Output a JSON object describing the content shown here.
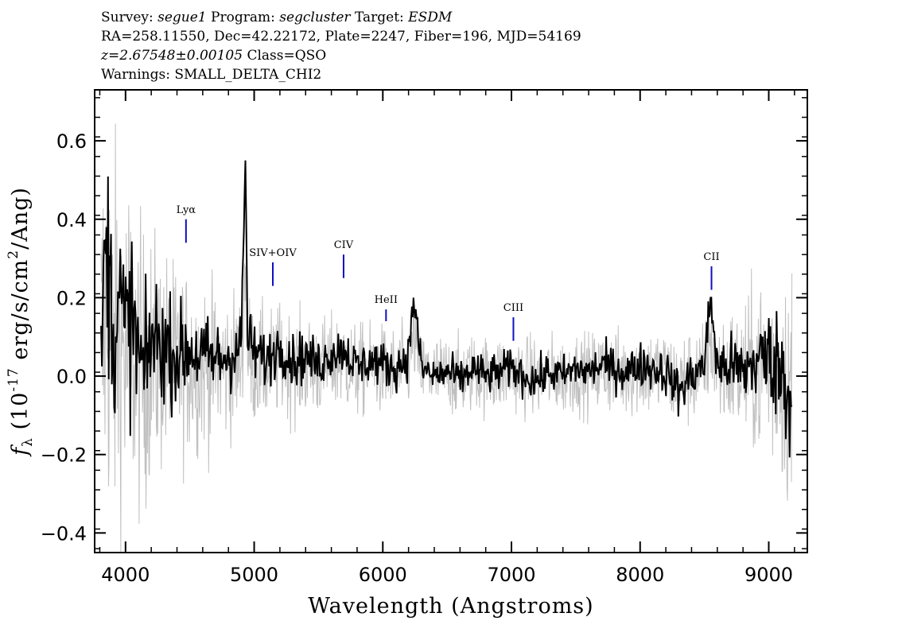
{
  "header": {
    "line1": {
      "survey_label": "Survey:",
      "survey": "segue1",
      "program_label": "Program:",
      "program": "segcluster",
      "target_label": "Target:",
      "target": "ESDM"
    },
    "line2": "RA=258.11550, Dec=42.22172, Plate=2247, Fiber=196, MJD=54169",
    "line3": {
      "redshift": "z=2.67548±0.00105",
      "class": "Class=QSO"
    },
    "line4": "Warnings: SMALL_DELTA_CHI2"
  },
  "chart_data": {
    "type": "line",
    "xlabel": "Wavelength (Angstroms)",
    "ylabel": "f_λ (10^-17 erg/s/cm^2/Ang)",
    "ylabel_parts": {
      "f": "f",
      "sub": "λ",
      "pre": "(10",
      "exp1": "-17",
      "mid": " erg/s/cm",
      "exp2": "2",
      "post": "/Ang)"
    },
    "xlim": [
      3760,
      9300
    ],
    "ylim": [
      -0.45,
      0.73
    ],
    "xticks": [
      {
        "value": 4000,
        "label": "4000"
      },
      {
        "value": 5000,
        "label": "5000"
      },
      {
        "value": 6000,
        "label": "6000"
      },
      {
        "value": 7000,
        "label": "7000"
      },
      {
        "value": 8000,
        "label": "8000"
      },
      {
        "value": 9000,
        "label": "9000"
      }
    ],
    "yticks": [
      {
        "value": -0.4,
        "label": "−0.4"
      },
      {
        "value": -0.2,
        "label": "−0.2"
      },
      {
        "value": 0.0,
        "label": "0.0"
      },
      {
        "value": 0.2,
        "label": "0.2"
      },
      {
        "value": 0.4,
        "label": "0.4"
      },
      {
        "value": 0.6,
        "label": "0.6"
      }
    ],
    "series": [
      {
        "role": "flux",
        "color": "#000000",
        "x": [
          3810,
          3850,
          3900,
          3950,
          4000,
          4050,
          4100,
          4150,
          4200,
          4300,
          4400,
          4500,
          4600,
          4700,
          4800,
          4900,
          4930,
          4950,
          5000,
          5100,
          5200,
          5300,
          5400,
          5500,
          5600,
          5700,
          5800,
          5900,
          6000,
          6100,
          6200,
          6240,
          6300,
          6400,
          6500,
          6600,
          6700,
          6800,
          6900,
          7000,
          7100,
          7200,
          7300,
          7400,
          7500,
          7600,
          7700,
          7800,
          7900,
          8000,
          8100,
          8200,
          8300,
          8400,
          8500,
          8550,
          8600,
          8700,
          8800,
          8900,
          9000,
          9100,
          9180
        ],
        "values": [
          0.05,
          0.38,
          0.12,
          0.2,
          0.1,
          0.15,
          0.05,
          0.0,
          0.1,
          0.08,
          0.05,
          0.07,
          0.05,
          0.04,
          0.05,
          0.08,
          0.55,
          0.1,
          0.06,
          0.04,
          0.08,
          0.04,
          0.05,
          0.03,
          0.06,
          0.07,
          0.02,
          0.04,
          0.03,
          0.02,
          0.05,
          0.2,
          0.02,
          0.0,
          0.01,
          -0.01,
          0.02,
          0.0,
          0.01,
          0.02,
          0.0,
          -0.01,
          0.01,
          0.0,
          0.02,
          0.01,
          0.03,
          0.02,
          0.01,
          0.03,
          0.02,
          0.01,
          -0.04,
          0.0,
          0.03,
          0.2,
          0.02,
          0.03,
          0.01,
          0.04,
          0.05,
          0.02,
          -0.08
        ]
      },
      {
        "role": "error",
        "color": "#c0c0c0",
        "x": [
          3810,
          3900,
          4000,
          4100,
          4200,
          4400,
          4600,
          4800,
          5000,
          5500,
          6000,
          6500,
          7000,
          7500,
          8000,
          8500,
          8800,
          9000,
          9180
        ],
        "values": [
          0.45,
          0.4,
          0.38,
          0.3,
          0.25,
          0.2,
          0.17,
          0.15,
          0.12,
          0.1,
          0.09,
          0.08,
          0.08,
          0.08,
          0.09,
          0.1,
          0.14,
          0.2,
          0.25
        ]
      }
    ],
    "annotations": [
      {
        "label": "Lyα",
        "x": 4470,
        "y_top": 0.4,
        "y_bottom": 0.34
      },
      {
        "label": "SIV+OIV",
        "x": 5145,
        "y_top": 0.29,
        "y_bottom": 0.23
      },
      {
        "label": "CIV",
        "x": 5695,
        "y_top": 0.31,
        "y_bottom": 0.25
      },
      {
        "label": "HeII",
        "x": 6025,
        "y_top": 0.17,
        "y_bottom": 0.14
      },
      {
        "label": "CIII",
        "x": 7015,
        "y_top": 0.15,
        "y_bottom": 0.09
      },
      {
        "label": "CII",
        "x": 8555,
        "y_top": 0.28,
        "y_bottom": 0.22
      }
    ]
  }
}
